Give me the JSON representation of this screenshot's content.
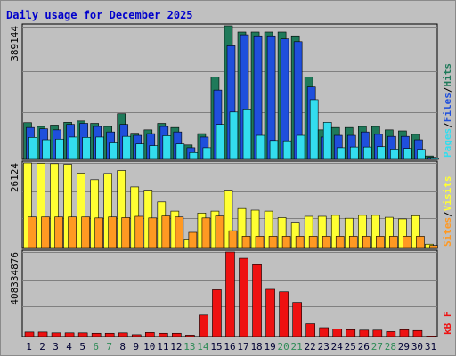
{
  "title": "Daily usage for December 2025",
  "colors": {
    "hits": "#1f7a5a",
    "files": "#1f4fdc",
    "pages": "#33ddee",
    "visits": "#ffff33",
    "sites": "#ff9922",
    "kbytes": "#ee1111",
    "title": "#0000cc",
    "weekend_label": "#2e8b57",
    "weekday_label": "#000033",
    "panel_bg": "#c0c0c0",
    "grid": "#808080"
  },
  "chart_data": [
    {
      "type": "bar",
      "panel": "top",
      "ylabel": "389144",
      "legend": [
        "Pages",
        "Files",
        "Hits"
      ],
      "legend_sep": "/",
      "ylim": [
        0,
        389144
      ],
      "categories": [
        "1",
        "2",
        "3",
        "4",
        "5",
        "6",
        "7",
        "8",
        "9",
        "10",
        "11",
        "12",
        "13",
        "14",
        "15",
        "16",
        "17",
        "18",
        "19",
        "20",
        "21",
        "22",
        "23",
        "24",
        "25",
        "26",
        "27",
        "28",
        "29",
        "30",
        "31"
      ],
      "series": [
        {
          "name": "Hits",
          "values": [
            107000,
            96000,
            100000,
            108000,
            112000,
            105000,
            96000,
            133000,
            76000,
            86000,
            105000,
            93000,
            42000,
            75000,
            240000,
            389144,
            371000,
            371000,
            371000,
            371000,
            360000,
            240000,
            86000,
            93000,
            93000,
            96000,
            96000,
            86000,
            83000,
            73000,
            10000
          ]
        },
        {
          "name": "Files",
          "values": [
            93000,
            89000,
            86000,
            102000,
            105000,
            96000,
            80000,
            102000,
            70000,
            75000,
            96000,
            80000,
            34000,
            65000,
            202000,
            331000,
            363000,
            360000,
            360000,
            351000,
            343000,
            211000,
            65000,
            70000,
            70000,
            80000,
            73000,
            67000,
            67000,
            57000,
            6000
          ]
        },
        {
          "name": "Pages",
          "values": [
            64000,
            57000,
            59000,
            65000,
            64000,
            65000,
            48000,
            67000,
            45000,
            40000,
            69000,
            45000,
            20000,
            34000,
            102000,
            138000,
            147000,
            70000,
            55000,
            54000,
            70000,
            174000,
            108000,
            34000,
            36000,
            36000,
            37000,
            30000,
            32000,
            29000,
            3000
          ]
        }
      ]
    },
    {
      "type": "bar",
      "panel": "middle",
      "ylabel": "26124",
      "legend": [
        "Sites",
        "Visits"
      ],
      "legend_sep": "/",
      "ylim": [
        0,
        26124
      ],
      "categories": [
        "1",
        "2",
        "3",
        "4",
        "5",
        "6",
        "7",
        "8",
        "9",
        "10",
        "11",
        "12",
        "13",
        "14",
        "15",
        "16",
        "17",
        "18",
        "19",
        "20",
        "21",
        "22",
        "23",
        "24",
        "25",
        "26",
        "27",
        "28",
        "29",
        "30",
        "31"
      ],
      "series": [
        {
          "name": "Visits",
          "values": [
            26124,
            26000,
            25900,
            25700,
            23000,
            21000,
            22900,
            23800,
            18800,
            17800,
            14200,
            11400,
            2600,
            10800,
            11400,
            17800,
            12200,
            11700,
            11400,
            9400,
            8000,
            9800,
            9800,
            10100,
            9200,
            10100,
            10100,
            9500,
            9000,
            10000,
            1300
          ]
        },
        {
          "name": "Sites",
          "values": [
            9600,
            9600,
            9600,
            9600,
            9600,
            9300,
            9600,
            9400,
            9800,
            9300,
            9900,
            9600,
            4900,
            9300,
            9900,
            5400,
            3700,
            3700,
            3700,
            3700,
            3700,
            3700,
            3700,
            3700,
            3700,
            3700,
            3700,
            3700,
            3700,
            3700,
            900
          ]
        }
      ]
    },
    {
      "type": "bar",
      "panel": "bottom",
      "ylabel": "408334876",
      "legend": [
        "kB F"
      ],
      "legend_sep": "",
      "ylim": [
        0,
        408334876
      ],
      "categories": [
        "1",
        "2",
        "3",
        "4",
        "5",
        "6",
        "7",
        "8",
        "9",
        "10",
        "11",
        "12",
        "13",
        "14",
        "15",
        "16",
        "17",
        "18",
        "19",
        "20",
        "21",
        "22",
        "23",
        "24",
        "25",
        "26",
        "27",
        "28",
        "29",
        "30",
        "31"
      ],
      "series": [
        {
          "name": "kB F",
          "values": [
            22000000,
            22000000,
            18000000,
            18000000,
            18000000,
            16000000,
            16000000,
            18000000,
            9000000,
            20000000,
            16000000,
            16000000,
            7000000,
            104000000,
            226000000,
            408334876,
            378000000,
            347000000,
            228000000,
            216000000,
            165000000,
            62000000,
            43000000,
            37000000,
            33000000,
            31000000,
            31000000,
            24000000,
            33000000,
            29000000,
            3000000
          ]
        }
      ]
    }
  ],
  "x_axis": {
    "days": [
      "1",
      "2",
      "3",
      "4",
      "5",
      "6",
      "7",
      "8",
      "9",
      "10",
      "11",
      "12",
      "13",
      "14",
      "15",
      "16",
      "17",
      "18",
      "19",
      "20",
      "21",
      "22",
      "23",
      "24",
      "25",
      "26",
      "27",
      "28",
      "29",
      "30",
      "31"
    ],
    "weekend_days": [
      "6",
      "7",
      "13",
      "14",
      "20",
      "21",
      "27",
      "28"
    ]
  }
}
